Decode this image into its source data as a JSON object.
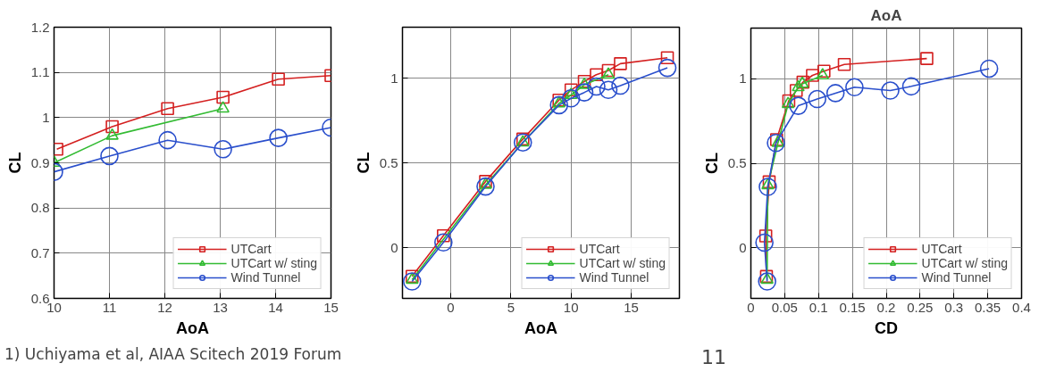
{
  "chart_data": [
    {
      "type": "line",
      "xlabel": "AoA",
      "ylabel": "CL",
      "xlim": [
        10,
        15
      ],
      "ylim": [
        0.6,
        1.2
      ],
      "xticks": [
        10,
        11,
        12,
        13,
        14,
        15
      ],
      "yticks": [
        0.6,
        0.7,
        0.8,
        0.9,
        1,
        1.1,
        1.2
      ],
      "grid": true,
      "legend": "bottom right",
      "series": [
        {
          "name": "UTCart",
          "color": "#d42020",
          "marker": "square",
          "x": [
            10.05,
            11.05,
            12.05,
            13.05,
            14.05,
            15
          ],
          "values": [
            0.93,
            0.98,
            1.02,
            1.045,
            1.085,
            1.093
          ]
        },
        {
          "name": "UTCart w/ sting",
          "color": "#33bb33",
          "marker": "triangle",
          "x": [
            10,
            11.05,
            13.05
          ],
          "values": [
            0.9,
            0.96,
            1.02
          ]
        },
        {
          "name": "Wind Tunnel",
          "color": "#2a4fcc",
          "marker": "circle",
          "x": [
            10,
            11,
            12.05,
            13.05,
            14.05,
            15
          ],
          "values": [
            0.88,
            0.915,
            0.95,
            0.93,
            0.955,
            0.978
          ]
        }
      ],
      "annotations": [
        "1)     Uchiyama et al, AIAA Scitech 2019 Forum"
      ]
    },
    {
      "type": "line",
      "xlabel": "AoA",
      "ylabel": "CL",
      "xlim": [
        -4,
        19
      ],
      "ylim": [
        -0.3,
        1.3
      ],
      "xticks": [
        0,
        5,
        10,
        15
      ],
      "yticks": [
        0,
        0.5,
        1
      ],
      "grid": true,
      "legend": "bottom right",
      "series": [
        {
          "name": "UTCart",
          "color": "#d42020",
          "marker": "square",
          "x": [
            -3.2,
            -0.6,
            2.9,
            6.0,
            9.0,
            10.0,
            11.1,
            12.1,
            13.1,
            14.1,
            18.0
          ],
          "values": [
            -0.17,
            0.07,
            0.39,
            0.64,
            0.87,
            0.93,
            0.98,
            1.02,
            1.045,
            1.085,
            1.12
          ]
        },
        {
          "name": "UTCart w/ sting",
          "color": "#33bb33",
          "marker": "triangle",
          "x": [
            -3.2,
            2.9,
            6.0,
            9.0,
            10.0,
            11.1,
            13.1
          ],
          "values": [
            -0.19,
            0.37,
            0.62,
            0.85,
            0.9,
            0.96,
            1.02
          ]
        },
        {
          "name": "Wind Tunnel",
          "color": "#2a4fcc",
          "marker": "circle",
          "x": [
            -3.2,
            -0.6,
            2.9,
            6.0,
            9.0,
            10.0,
            11.1,
            12.1,
            13.1,
            14.1,
            18.0
          ],
          "values": [
            -0.2,
            0.03,
            0.36,
            0.62,
            0.84,
            0.88,
            0.915,
            0.95,
            0.93,
            0.955,
            1.06
          ]
        }
      ]
    },
    {
      "type": "line",
      "title": "AoA",
      "xlabel": "CD",
      "ylabel": "CL",
      "xlim": [
        0,
        0.4
      ],
      "ylim": [
        -0.3,
        1.3
      ],
      "xticks": [
        0,
        0.05,
        0.1,
        0.15,
        0.2,
        0.25,
        0.3,
        0.35,
        0.4
      ],
      "yticks": [
        0,
        0.5,
        1
      ],
      "grid": true,
      "legend": "bottom right",
      "series": [
        {
          "name": "UTCart",
          "color": "#d42020",
          "marker": "square",
          "x": [
            0.023,
            0.022,
            0.027,
            0.038,
            0.056,
            0.067,
            0.077,
            0.091,
            0.108,
            0.138,
            0.26
          ],
          "values": [
            -0.17,
            0.07,
            0.39,
            0.64,
            0.87,
            0.93,
            0.98,
            1.02,
            1.045,
            1.085,
            1.12
          ]
        },
        {
          "name": "UTCart w/ sting",
          "color": "#33bb33",
          "marker": "triangle",
          "x": [
            0.024,
            0.025,
            0.04,
            0.055,
            0.07,
            0.076,
            0.106
          ],
          "values": [
            -0.19,
            0.37,
            0.62,
            0.85,
            0.95,
            0.97,
            1.02
          ]
        },
        {
          "name": "Wind Tunnel",
          "color": "#2a4fcc",
          "marker": "circle",
          "x": [
            0.024,
            0.02,
            0.025,
            0.037,
            0.07,
            0.098,
            0.125,
            0.153,
            0.206,
            0.237,
            0.352
          ],
          "values": [
            -0.2,
            0.03,
            0.36,
            0.62,
            0.84,
            0.88,
            0.915,
            0.95,
            0.93,
            0.955,
            1.06
          ]
        }
      ],
      "annotations": [
        "11"
      ]
    }
  ]
}
